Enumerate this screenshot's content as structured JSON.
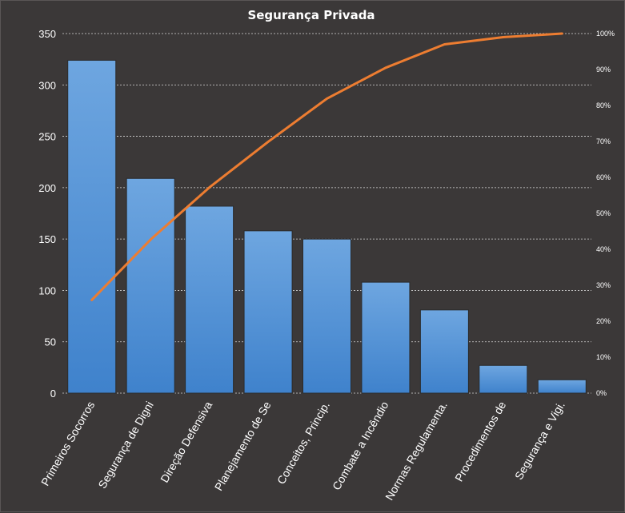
{
  "chart_data": {
    "type": "bar",
    "title": "Segurança Privada",
    "categories": [
      "Primeiros Socorros",
      "Segurança de Digni",
      "Direção Defensiva",
      "Planejamento de Se",
      "Conceitos, Princip.",
      "Combate a Incêndio",
      "Normas Regulamenta.",
      "Procedimentos de",
      "Segurança e Vigi."
    ],
    "series": [
      {
        "type": "bar",
        "values": [
          324,
          209,
          182,
          158,
          150,
          108,
          81,
          27,
          13
        ]
      },
      {
        "type": "line",
        "axis": "right",
        "values": [
          25.9,
          42.7,
          57.2,
          69.9,
          81.9,
          90.5,
          97.0,
          99.0,
          100.0
        ]
      }
    ],
    "y_left": {
      "min": 0,
      "max": 350,
      "ticks": [
        "0",
        "50",
        "100",
        "150",
        "200",
        "250",
        "300",
        "350"
      ]
    },
    "y_right": {
      "min": 0,
      "max": 100,
      "ticks": [
        "0%",
        "10%",
        "20%",
        "30%",
        "40%",
        "50%",
        "60%",
        "70%",
        "80%",
        "90%",
        "100%"
      ]
    },
    "grid": true,
    "legend": "none",
    "colors": {
      "background": "#3b3838",
      "bar_top": "#6ea6e0",
      "bar_bottom": "#3f82cc",
      "bar_border": "#2b2b2b",
      "line": "#ed7d31",
      "grid": "#d9d9d9",
      "text": "#ffffff"
    }
  }
}
